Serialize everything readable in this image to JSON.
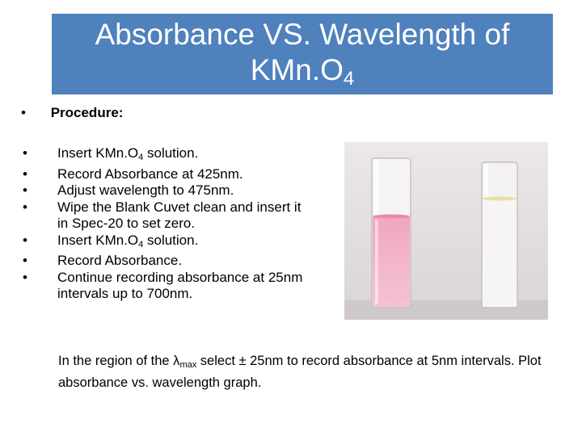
{
  "slide": {
    "title_line1": "Absorbance VS. Wavelength of",
    "title_line2_main": "KMn.O",
    "title_line2_sub": "4",
    "procedure_label": "Procedure:",
    "bullet_char": "•",
    "steps": [
      {
        "pre": "Insert KMn.O",
        "sub": "4",
        "post": " solution."
      },
      {
        "pre": "Record Absorbance at 425nm.",
        "sub": "",
        "post": ""
      },
      {
        "pre": "Adjust wavelength to 475nm.",
        "sub": "",
        "post": ""
      },
      {
        "pre": "Wipe the Blank Cuvet clean and insert it in Spec-20 to set zero.",
        "sub": "",
        "post": ""
      },
      {
        "pre": "Insert KMn.O",
        "sub": "4",
        "post": " solution."
      },
      {
        "pre": "Record Absorbance.",
        "sub": "",
        "post": ""
      },
      {
        "pre": "Continue recording absorbance at 25nm intervals up to 700nm.",
        "sub": "",
        "post": ""
      }
    ],
    "note_pre": "In the region of the λ",
    "note_sub": "max",
    "note_post": " select ± 25nm to record absorbance at 5nm intervals. Plot absorbance vs. wavelength graph."
  }
}
